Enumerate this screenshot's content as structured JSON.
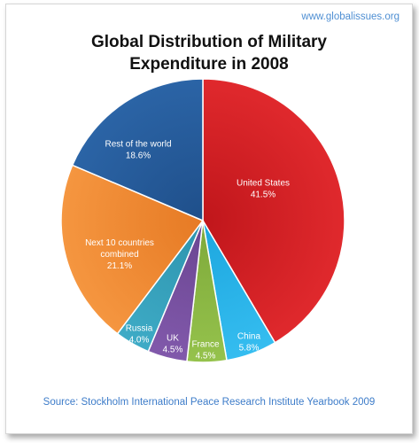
{
  "website": "www.globalissues.org",
  "title_lines": [
    "Global Distribution of Military",
    "Expenditure in 2008"
  ],
  "source": "Source: Stockholm International Peace Research Institute Yearbook 2009",
  "chart_data": {
    "type": "pie",
    "title": "Global Distribution of Military Expenditure in 2008",
    "slices": [
      {
        "label_lines": [
          "United States",
          "41.5%"
        ],
        "value": 41.5,
        "color": "#c0161b",
        "color_light": "#e0292d"
      },
      {
        "label_lines": [
          "China",
          "5.8%"
        ],
        "value": 5.8,
        "color": "#1ca6de",
        "color_light": "#35bdf0"
      },
      {
        "label_lines": [
          "France",
          "4.5%"
        ],
        "value": 4.5,
        "color": "#7ea93a",
        "color_light": "#95c24c"
      },
      {
        "label_lines": [
          "UK",
          "4.5%"
        ],
        "value": 4.5,
        "color": "#6a4591",
        "color_light": "#8159ab"
      },
      {
        "label_lines": [
          "Russia",
          "4.0%"
        ],
        "value": 4.0,
        "color": "#2d93ad",
        "color_light": "#3eabc6"
      },
      {
        "label_lines": [
          "Next 10 countries",
          "combined",
          "21.1%"
        ],
        "value": 21.1,
        "color": "#e67a24",
        "color_light": "#f59640"
      },
      {
        "label_lines": [
          "Rest of the world",
          "18.6%"
        ],
        "value": 18.6,
        "color": "#1f4f8a",
        "color_light": "#2b64a6"
      }
    ]
  }
}
